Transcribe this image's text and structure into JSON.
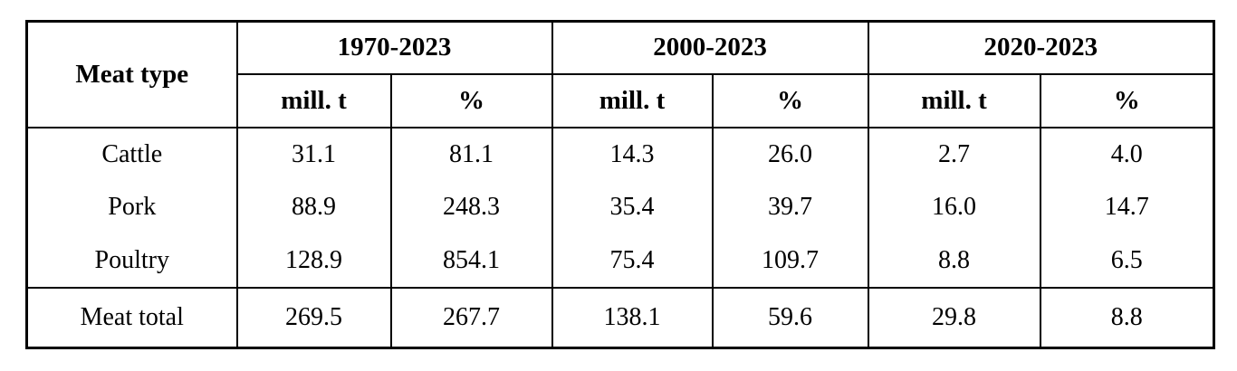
{
  "page": {
    "background_color": "#ffffff",
    "border_color": "#000000",
    "text_color": "#000000"
  },
  "table": {
    "corner_header": "Meat type",
    "period_headers": [
      "1970-2023",
      "2000-2023",
      "2020-2023"
    ],
    "unit_headers": [
      "mill. t",
      "%",
      "mill. t",
      "%",
      "mill. t",
      "%"
    ],
    "rows": [
      {
        "label": "Cattle",
        "values": [
          "31.1",
          "81.1",
          "14.3",
          "26.0",
          "2.7",
          "4.0"
        ]
      },
      {
        "label": "Pork",
        "values": [
          "88.9",
          "248.3",
          "35.4",
          "39.7",
          "16.0",
          "14.7"
        ]
      },
      {
        "label": "Poultry",
        "values": [
          "128.9",
          "854.1",
          "75.4",
          "109.7",
          "8.8",
          "6.5"
        ]
      }
    ],
    "total_row": {
      "label": "Meat total",
      "values": [
        "269.5",
        "267.7",
        "138.1",
        "59.6",
        "29.8",
        "8.8"
      ]
    }
  },
  "chart_data": {
    "type": "table",
    "columns": [
      "Meat type",
      "1970-2023 mill. t",
      "1970-2023 %",
      "2000-2023 mill. t",
      "2000-2023 %",
      "2020-2023 mill. t",
      "2020-2023 %"
    ],
    "rows": [
      [
        "Cattle",
        31.1,
        81.1,
        14.3,
        26.0,
        2.7,
        4.0
      ],
      [
        "Pork",
        88.9,
        248.3,
        35.4,
        39.7,
        16.0,
        14.7
      ],
      [
        "Poultry",
        128.9,
        854.1,
        75.4,
        109.7,
        8.8,
        6.5
      ],
      [
        "Meat total",
        269.5,
        267.7,
        138.1,
        59.6,
        29.8,
        8.8
      ]
    ]
  }
}
